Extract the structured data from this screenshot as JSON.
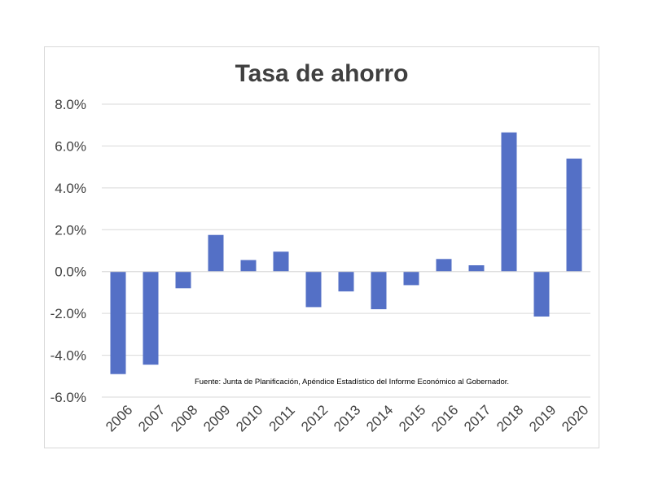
{
  "chart_data": {
    "type": "bar",
    "title": "Tasa de ahorro",
    "xlabel": "",
    "ylabel": "",
    "categories": [
      "2006",
      "2007",
      "2008",
      "2009",
      "2010",
      "2011",
      "2012",
      "2013",
      "2014",
      "2015",
      "2016",
      "2017",
      "2018",
      "2019",
      "2020"
    ],
    "values": [
      -4.9,
      -4.45,
      -0.8,
      1.75,
      0.55,
      0.95,
      -1.7,
      -0.95,
      -1.8,
      -0.65,
      0.6,
      0.3,
      6.65,
      -2.15,
      5.4
    ],
    "ylim": [
      -6,
      8
    ],
    "yticks": [
      8,
      6,
      4,
      2,
      0,
      -2,
      -4,
      -6
    ],
    "ytick_labels": [
      "8.0%",
      "6.0%",
      "4.0%",
      "2.0%",
      "0.0%",
      "-2.0%",
      "-4.0%",
      "-6.0%"
    ],
    "grid": true,
    "legend": "none",
    "bar_color": "#5470c6",
    "annotation": "Fuente: Junta de Planificación, Apéndice Estadístico del Informe Económico al Gobernador."
  }
}
